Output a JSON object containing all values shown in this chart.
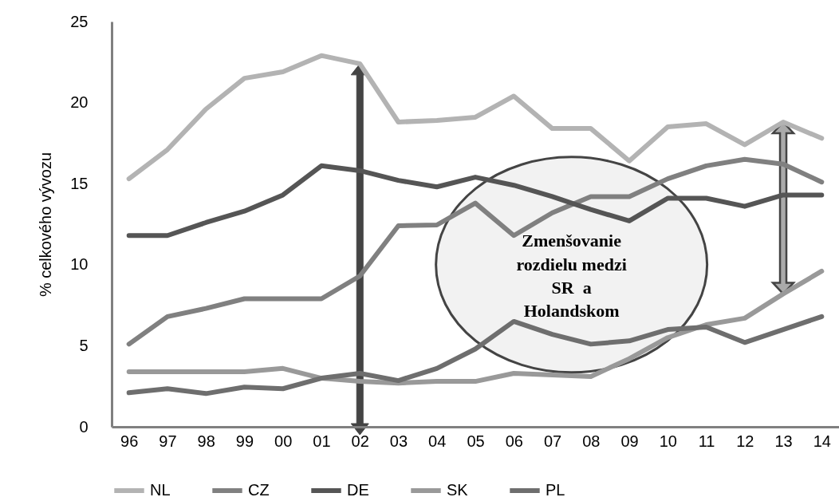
{
  "chart_data": {
    "type": "line",
    "ylabel": "% celkového vývozu",
    "categories": [
      "96",
      "97",
      "98",
      "99",
      "00",
      "01",
      "02",
      "03",
      "04",
      "05",
      "06",
      "07",
      "08",
      "09",
      "10",
      "11",
      "12",
      "13",
      "14"
    ],
    "series": [
      {
        "name": "NL",
        "color": "#b3b3b3",
        "values": [
          15.3,
          17.1,
          19.6,
          21.5,
          21.9,
          22.9,
          22.4,
          18.8,
          18.9,
          19.1,
          20.4,
          18.4,
          18.4,
          16.4,
          18.5,
          18.7,
          17.4,
          18.8,
          17.8
        ]
      },
      {
        "name": "CZ",
        "color": "#808080",
        "values": [
          5.1,
          6.8,
          7.3,
          7.9,
          7.9,
          7.9,
          9.3,
          12.4,
          12.45,
          13.8,
          11.8,
          13.2,
          14.2,
          14.2,
          15.3,
          16.1,
          16.5,
          16.2,
          15.1
        ]
      },
      {
        "name": "DE",
        "color": "#555555",
        "values": [
          11.8,
          11.8,
          12.6,
          13.3,
          14.3,
          16.1,
          15.8,
          15.2,
          14.8,
          15.4,
          14.9,
          14.2,
          13.4,
          12.7,
          14.1,
          14.1,
          13.6,
          14.3,
          14.3
        ]
      },
      {
        "name": "SK",
        "color": "#999999",
        "values": [
          3.4,
          3.4,
          3.4,
          3.4,
          3.6,
          3.0,
          2.8,
          2.7,
          2.8,
          2.8,
          3.3,
          3.2,
          3.1,
          4.2,
          5.5,
          6.3,
          6.7,
          8.2,
          9.6
        ]
      },
      {
        "name": "PL",
        "color": "#6e6e6e",
        "values": [
          2.1,
          2.35,
          2.05,
          2.45,
          2.35,
          3.0,
          3.3,
          2.85,
          3.6,
          4.8,
          6.5,
          5.7,
          5.1,
          5.3,
          6.0,
          6.15,
          5.2,
          6.0,
          6.8
        ]
      }
    ],
    "ylim": [
      0,
      25
    ],
    "yticks": [
      0,
      5,
      10,
      15,
      20,
      25
    ],
    "grid": false,
    "legend": "bottom",
    "annotations": [
      "Zmenšovanie rozdielu medzi SR  a Holandskom"
    ]
  }
}
